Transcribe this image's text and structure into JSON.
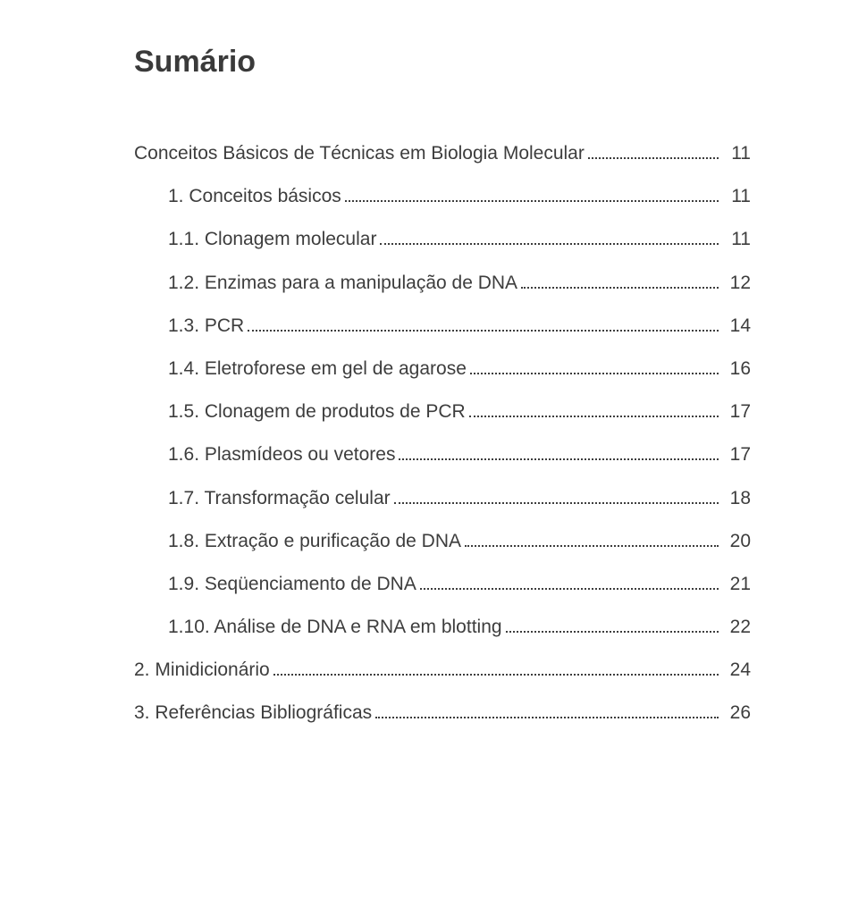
{
  "title": "Sumário",
  "text_color": "#3d3d3d",
  "background_color": "#ffffff",
  "title_fontsize": 34,
  "entry_fontsize": 21,
  "entries": [
    {
      "label": "Conceitos Básicos de Técnicas em Biologia Molecular",
      "page": "11",
      "indent": false
    },
    {
      "label": "1. Conceitos básicos",
      "page": "11",
      "indent": true
    },
    {
      "label": "1.1. Clonagem molecular",
      "page": "11",
      "indent": true
    },
    {
      "label": "1.2. Enzimas para a manipulação de DNA",
      "page": "12",
      "indent": true
    },
    {
      "label": "1.3. PCR",
      "page": "14",
      "indent": true
    },
    {
      "label": "1.4. Eletroforese em gel de agarose",
      "page": "16",
      "indent": true
    },
    {
      "label": "1.5. Clonagem de produtos de PCR",
      "page": "17",
      "indent": true
    },
    {
      "label": "1.6. Plasmídeos ou vetores",
      "page": "17",
      "indent": true
    },
    {
      "label": "1.7. Transformação celular",
      "page": "18",
      "indent": true
    },
    {
      "label": "1.8. Extração e purificação de DNA",
      "page": "20",
      "indent": true
    },
    {
      "label": "1.9. Seqüenciamento de DNA",
      "page": "21",
      "indent": true
    },
    {
      "label": "1.10. Análise de DNA e RNA em blotting",
      "page": "22",
      "indent": true
    },
    {
      "label": "2. Minidicionário",
      "page": "24",
      "indent": false
    },
    {
      "label": "3. Referências Bibliográficas",
      "page": "26",
      "indent": false
    }
  ]
}
